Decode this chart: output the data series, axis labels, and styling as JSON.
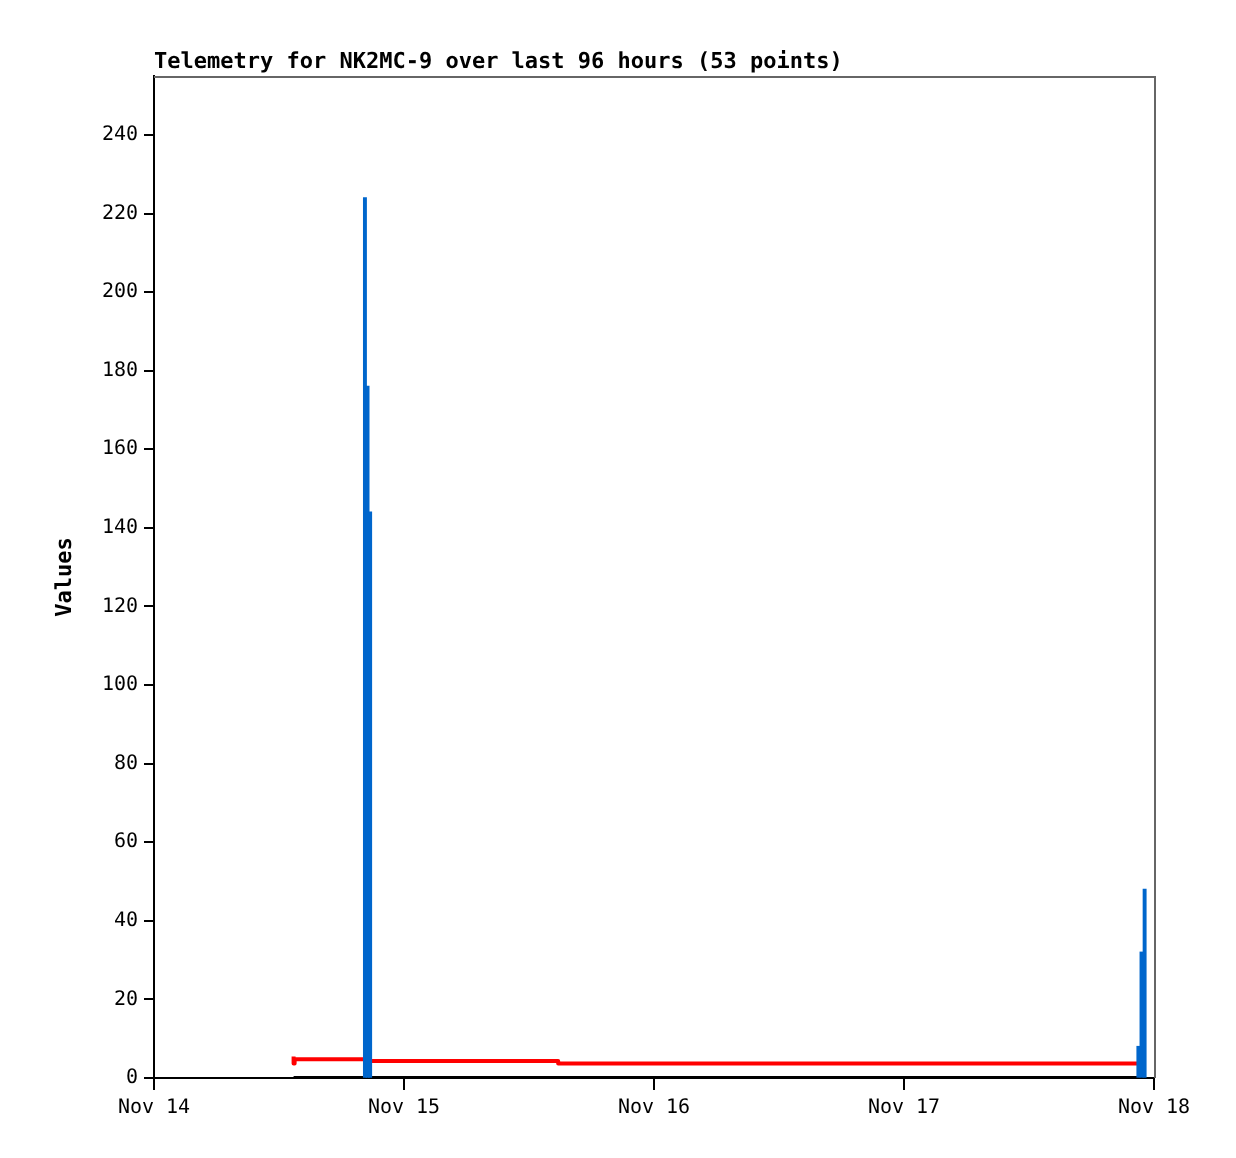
{
  "chart_data": {
    "type": "bar",
    "title": "Telemetry for NK2MC-9 over last 96 hours (53 points)",
    "ylabel": "Values",
    "xlim": [
      "--11-14",
      "--11-18"
    ],
    "xticks": [
      {
        "value": "--11-14",
        "label": "Nov 14"
      },
      {
        "value": "--11-15",
        "label": "Nov 15"
      },
      {
        "value": "--11-16",
        "label": "Nov 16"
      },
      {
        "value": "--11-17",
        "label": "Nov 17"
      },
      {
        "value": "--11-18",
        "label": "Nov 18"
      }
    ],
    "ylim": [
      0,
      255
    ],
    "yticks": [
      0,
      20,
      40,
      60,
      80,
      100,
      120,
      140,
      160,
      180,
      200,
      220,
      240
    ],
    "grid": false,
    "legend": false,
    "series": [
      {
        "color": "#0066cc",
        "x": [
          "--11-14T20:15",
          "--11-14T20:30",
          "--11-14T20:45",
          "--11-17T22:30",
          "--11-17T22:48",
          "--11-17T23:06"
        ],
        "values": [
          224,
          176,
          144,
          8,
          32,
          48
        ]
      },
      {
        "type": "step",
        "color": "#ff0000",
        "x": [
          "--11-14T13:24",
          "--11-14T13:30",
          "--11-14T20:42",
          "--11-15T14:48",
          "--11-16T19:18",
          "--11-17T22:30"
        ],
        "values": [
          5.5,
          3.7,
          4.8,
          4.3,
          3.7,
          3.7
        ]
      },
      {
        "type": "line",
        "color": "#000000",
        "x": [
          "--11-14T13:24",
          "--11-17T23:00"
        ],
        "values": [
          0,
          0
        ]
      }
    ]
  }
}
